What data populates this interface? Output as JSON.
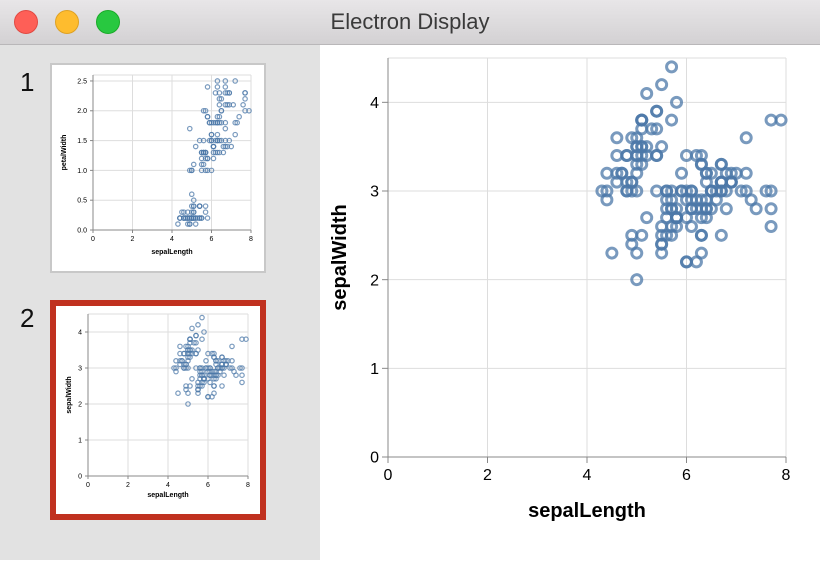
{
  "window": {
    "title": "Electron Display"
  },
  "thumbnails": [
    {
      "number": "1",
      "x_field": "sepalLength",
      "y_field": "petalWidth",
      "selected": false,
      "x_ticks": [
        0,
        2,
        4,
        6,
        8
      ],
      "y_ticks": [
        "0.0",
        "0.5",
        "1.0",
        "1.5",
        "2.0",
        "2.5"
      ]
    },
    {
      "number": "2",
      "x_field": "sepalLength",
      "y_field": "sepalWidth",
      "selected": true,
      "x_ticks": [
        0,
        2,
        4,
        6,
        8
      ],
      "y_ticks": [
        0,
        1,
        2,
        3,
        4
      ]
    }
  ],
  "colors": {
    "mark": "#4c78a8",
    "selection": "#c0311f",
    "grid": "#dddddd"
  },
  "chart_data": [
    {
      "type": "scatter",
      "title": "",
      "xlabel": "sepalLength",
      "ylabel": "sepalWidth",
      "xlim": [
        0,
        8
      ],
      "ylim": [
        0,
        4.5
      ],
      "x_ticks": [
        0,
        2,
        4,
        6,
        8
      ],
      "y_ticks": [
        0,
        1,
        2,
        3,
        4
      ],
      "grid": true,
      "marker": "open-circle",
      "points": [
        [
          5.1,
          3.5
        ],
        [
          4.9,
          3.0
        ],
        [
          4.7,
          3.2
        ],
        [
          4.6,
          3.1
        ],
        [
          5.0,
          3.6
        ],
        [
          5.4,
          3.9
        ],
        [
          4.6,
          3.4
        ],
        [
          5.0,
          3.4
        ],
        [
          4.4,
          2.9
        ],
        [
          4.9,
          3.1
        ],
        [
          5.4,
          3.7
        ],
        [
          4.8,
          3.4
        ],
        [
          4.8,
          3.0
        ],
        [
          4.3,
          3.0
        ],
        [
          5.8,
          4.0
        ],
        [
          5.7,
          4.4
        ],
        [
          5.4,
          3.9
        ],
        [
          5.1,
          3.5
        ],
        [
          5.7,
          3.8
        ],
        [
          5.1,
          3.8
        ],
        [
          5.4,
          3.4
        ],
        [
          5.1,
          3.7
        ],
        [
          4.6,
          3.6
        ],
        [
          5.1,
          3.3
        ],
        [
          4.8,
          3.4
        ],
        [
          5.0,
          3.0
        ],
        [
          5.0,
          3.4
        ],
        [
          5.2,
          3.5
        ],
        [
          5.2,
          3.4
        ],
        [
          4.7,
          3.2
        ],
        [
          4.8,
          3.1
        ],
        [
          5.4,
          3.4
        ],
        [
          5.2,
          4.1
        ],
        [
          5.5,
          4.2
        ],
        [
          4.9,
          3.1
        ],
        [
          5.0,
          3.2
        ],
        [
          5.5,
          3.5
        ],
        [
          4.9,
          3.6
        ],
        [
          4.4,
          3.0
        ],
        [
          5.1,
          3.4
        ],
        [
          5.0,
          3.5
        ],
        [
          4.5,
          2.3
        ],
        [
          4.4,
          3.2
        ],
        [
          5.0,
          3.5
        ],
        [
          5.1,
          3.8
        ],
        [
          4.8,
          3.0
        ],
        [
          5.1,
          3.8
        ],
        [
          4.6,
          3.2
        ],
        [
          5.3,
          3.7
        ],
        [
          5.0,
          3.3
        ],
        [
          7.0,
          3.2
        ],
        [
          6.4,
          3.2
        ],
        [
          6.9,
          3.1
        ],
        [
          5.5,
          2.3
        ],
        [
          6.5,
          2.8
        ],
        [
          5.7,
          2.8
        ],
        [
          6.3,
          3.3
        ],
        [
          4.9,
          2.4
        ],
        [
          6.6,
          2.9
        ],
        [
          5.2,
          2.7
        ],
        [
          5.0,
          2.0
        ],
        [
          5.9,
          3.0
        ],
        [
          6.0,
          2.2
        ],
        [
          6.1,
          2.9
        ],
        [
          5.6,
          2.9
        ],
        [
          6.7,
          3.1
        ],
        [
          5.6,
          3.0
        ],
        [
          5.8,
          2.7
        ],
        [
          6.2,
          2.2
        ],
        [
          5.6,
          2.5
        ],
        [
          5.9,
          3.2
        ],
        [
          6.1,
          2.8
        ],
        [
          6.3,
          2.5
        ],
        [
          6.1,
          2.8
        ],
        [
          6.4,
          2.9
        ],
        [
          6.6,
          3.0
        ],
        [
          6.8,
          2.8
        ],
        [
          6.7,
          3.0
        ],
        [
          6.0,
          2.9
        ],
        [
          5.7,
          2.6
        ],
        [
          5.5,
          2.4
        ],
        [
          5.5,
          2.4
        ],
        [
          5.8,
          2.7
        ],
        [
          6.0,
          2.7
        ],
        [
          5.4,
          3.0
        ],
        [
          6.0,
          3.4
        ],
        [
          6.7,
          3.1
        ],
        [
          6.3,
          2.3
        ],
        [
          5.6,
          3.0
        ],
        [
          5.5,
          2.5
        ],
        [
          5.5,
          2.6
        ],
        [
          6.1,
          3.0
        ],
        [
          5.8,
          2.6
        ],
        [
          5.0,
          2.3
        ],
        [
          5.6,
          2.7
        ],
        [
          5.7,
          3.0
        ],
        [
          5.7,
          2.9
        ],
        [
          6.2,
          2.9
        ],
        [
          5.1,
          2.5
        ],
        [
          5.7,
          2.8
        ],
        [
          6.3,
          3.3
        ],
        [
          5.8,
          2.7
        ],
        [
          7.1,
          3.0
        ],
        [
          6.3,
          2.9
        ],
        [
          6.5,
          3.0
        ],
        [
          7.6,
          3.0
        ],
        [
          4.9,
          2.5
        ],
        [
          7.3,
          2.9
        ],
        [
          6.7,
          2.5
        ],
        [
          7.2,
          3.6
        ],
        [
          6.5,
          3.2
        ],
        [
          6.4,
          2.7
        ],
        [
          6.8,
          3.0
        ],
        [
          5.7,
          2.5
        ],
        [
          5.8,
          2.8
        ],
        [
          6.4,
          3.2
        ],
        [
          6.5,
          3.0
        ],
        [
          7.7,
          3.8
        ],
        [
          7.7,
          2.6
        ],
        [
          6.0,
          2.2
        ],
        [
          6.9,
          3.2
        ],
        [
          5.6,
          2.8
        ],
        [
          7.7,
          2.8
        ],
        [
          6.3,
          2.7
        ],
        [
          6.7,
          3.3
        ],
        [
          7.2,
          3.2
        ],
        [
          6.2,
          2.8
        ],
        [
          6.1,
          3.0
        ],
        [
          6.4,
          2.8
        ],
        [
          7.2,
          3.0
        ],
        [
          7.4,
          2.8
        ],
        [
          7.9,
          3.8
        ],
        [
          6.4,
          2.8
        ],
        [
          6.3,
          2.8
        ],
        [
          6.1,
          2.6
        ],
        [
          7.7,
          3.0
        ],
        [
          6.3,
          3.4
        ],
        [
          6.4,
          3.1
        ],
        [
          6.0,
          3.0
        ],
        [
          6.9,
          3.1
        ],
        [
          6.7,
          3.1
        ],
        [
          6.9,
          3.1
        ],
        [
          5.8,
          2.7
        ],
        [
          6.8,
          3.2
        ],
        [
          6.7,
          3.3
        ],
        [
          6.7,
          3.0
        ],
        [
          6.3,
          2.5
        ],
        [
          6.5,
          3.0
        ],
        [
          6.2,
          3.4
        ],
        [
          5.9,
          3.0
        ]
      ]
    },
    {
      "type": "scatter",
      "title": "",
      "xlabel": "sepalLength",
      "ylabel": "petalWidth",
      "xlim": [
        0,
        8
      ],
      "ylim": [
        0,
        2.6
      ],
      "x_ticks": [
        0,
        2,
        4,
        6,
        8
      ],
      "y_ticks": [
        "0.0",
        "0.5",
        "1.0",
        "1.5",
        "2.0",
        "2.5"
      ],
      "grid": true,
      "marker": "open-circle",
      "points": [
        [
          5.1,
          0.2
        ],
        [
          4.9,
          0.2
        ],
        [
          4.7,
          0.2
        ],
        [
          4.6,
          0.2
        ],
        [
          5.0,
          0.2
        ],
        [
          5.4,
          0.4
        ],
        [
          4.6,
          0.3
        ],
        [
          5.0,
          0.2
        ],
        [
          4.4,
          0.2
        ],
        [
          4.9,
          0.1
        ],
        [
          5.4,
          0.2
        ],
        [
          4.8,
          0.2
        ],
        [
          4.8,
          0.1
        ],
        [
          4.3,
          0.1
        ],
        [
          5.8,
          0.2
        ],
        [
          5.7,
          0.4
        ],
        [
          5.4,
          0.4
        ],
        [
          5.1,
          0.3
        ],
        [
          5.7,
          0.3
        ],
        [
          5.1,
          0.3
        ],
        [
          5.4,
          0.2
        ],
        [
          5.1,
          0.4
        ],
        [
          4.6,
          0.2
        ],
        [
          5.1,
          0.5
        ],
        [
          4.8,
          0.2
        ],
        [
          5.0,
          0.2
        ],
        [
          5.0,
          0.4
        ],
        [
          5.2,
          0.2
        ],
        [
          5.2,
          0.2
        ],
        [
          4.7,
          0.2
        ],
        [
          4.8,
          0.2
        ],
        [
          5.4,
          0.4
        ],
        [
          5.2,
          0.1
        ],
        [
          5.5,
          0.2
        ],
        [
          4.9,
          0.2
        ],
        [
          5.0,
          0.2
        ],
        [
          5.5,
          0.2
        ],
        [
          4.9,
          0.1
        ],
        [
          4.4,
          0.2
        ],
        [
          5.1,
          0.2
        ],
        [
          5.0,
          0.3
        ],
        [
          4.5,
          0.3
        ],
        [
          4.4,
          0.2
        ],
        [
          5.0,
          0.6
        ],
        [
          5.1,
          0.4
        ],
        [
          4.8,
          0.3
        ],
        [
          5.1,
          0.2
        ],
        [
          4.6,
          0.2
        ],
        [
          5.3,
          0.2
        ],
        [
          5.0,
          0.2
        ],
        [
          7.0,
          1.4
        ],
        [
          6.4,
          1.5
        ],
        [
          6.9,
          1.5
        ],
        [
          5.5,
          1.3
        ],
        [
          6.5,
          1.5
        ],
        [
          5.7,
          1.3
        ],
        [
          6.3,
          1.6
        ],
        [
          4.9,
          1.0
        ],
        [
          6.6,
          1.3
        ],
        [
          5.2,
          1.4
        ],
        [
          5.0,
          1.0
        ],
        [
          5.9,
          1.5
        ],
        [
          6.0,
          1.0
        ],
        [
          6.1,
          1.4
        ],
        [
          5.6,
          1.3
        ],
        [
          6.7,
          1.4
        ],
        [
          5.6,
          1.5
        ],
        [
          5.8,
          1.0
        ],
        [
          6.2,
          1.5
        ],
        [
          5.6,
          1.1
        ],
        [
          5.9,
          1.8
        ],
        [
          6.1,
          1.3
        ],
        [
          6.3,
          1.5
        ],
        [
          6.1,
          1.2
        ],
        [
          6.4,
          1.3
        ],
        [
          6.6,
          1.4
        ],
        [
          6.8,
          1.4
        ],
        [
          6.7,
          1.7
        ],
        [
          6.0,
          1.5
        ],
        [
          5.7,
          1.0
        ],
        [
          5.5,
          1.1
        ],
        [
          5.5,
          1.0
        ],
        [
          5.8,
          1.2
        ],
        [
          6.0,
          1.6
        ],
        [
          5.4,
          1.5
        ],
        [
          6.0,
          1.6
        ],
        [
          6.7,
          1.5
        ],
        [
          6.3,
          1.3
        ],
        [
          5.6,
          1.3
        ],
        [
          5.5,
          1.3
        ],
        [
          5.5,
          1.2
        ],
        [
          6.1,
          1.4
        ],
        [
          5.8,
          1.2
        ],
        [
          5.0,
          1.0
        ],
        [
          5.6,
          1.3
        ],
        [
          5.7,
          1.2
        ],
        [
          5.7,
          1.3
        ],
        [
          6.2,
          1.3
        ],
        [
          5.1,
          1.1
        ],
        [
          5.7,
          1.3
        ],
        [
          6.3,
          2.5
        ],
        [
          5.8,
          1.9
        ],
        [
          7.1,
          2.1
        ],
        [
          6.3,
          1.8
        ],
        [
          6.5,
          2.2
        ],
        [
          7.6,
          2.1
        ],
        [
          4.9,
          1.7
        ],
        [
          7.3,
          1.8
        ],
        [
          6.7,
          1.8
        ],
        [
          7.2,
          2.5
        ],
        [
          6.5,
          2.0
        ],
        [
          6.4,
          1.9
        ],
        [
          6.8,
          2.1
        ],
        [
          5.7,
          2.0
        ],
        [
          5.8,
          2.4
        ],
        [
          6.4,
          2.3
        ],
        [
          6.5,
          1.8
        ],
        [
          7.7,
          2.2
        ],
        [
          7.7,
          2.3
        ],
        [
          6.0,
          1.5
        ],
        [
          6.9,
          2.3
        ],
        [
          5.6,
          2.0
        ],
        [
          7.7,
          2.0
        ],
        [
          6.3,
          1.8
        ],
        [
          6.7,
          2.1
        ],
        [
          7.2,
          1.8
        ],
        [
          6.2,
          1.8
        ],
        [
          6.1,
          1.8
        ],
        [
          6.4,
          2.1
        ],
        [
          7.2,
          1.6
        ],
        [
          7.4,
          1.9
        ],
        [
          7.9,
          2.0
        ],
        [
          6.4,
          2.2
        ],
        [
          6.3,
          1.5
        ],
        [
          6.1,
          1.4
        ],
        [
          7.7,
          2.3
        ],
        [
          6.3,
          2.4
        ],
        [
          6.4,
          1.8
        ],
        [
          6.0,
          1.8
        ],
        [
          6.9,
          2.1
        ],
        [
          6.7,
          2.4
        ],
        [
          6.9,
          2.3
        ],
        [
          5.8,
          1.9
        ],
        [
          6.8,
          2.3
        ],
        [
          6.7,
          2.5
        ],
        [
          6.7,
          2.3
        ],
        [
          6.3,
          1.9
        ],
        [
          6.5,
          2.0
        ],
        [
          6.2,
          2.3
        ],
        [
          5.9,
          1.8
        ]
      ]
    }
  ]
}
